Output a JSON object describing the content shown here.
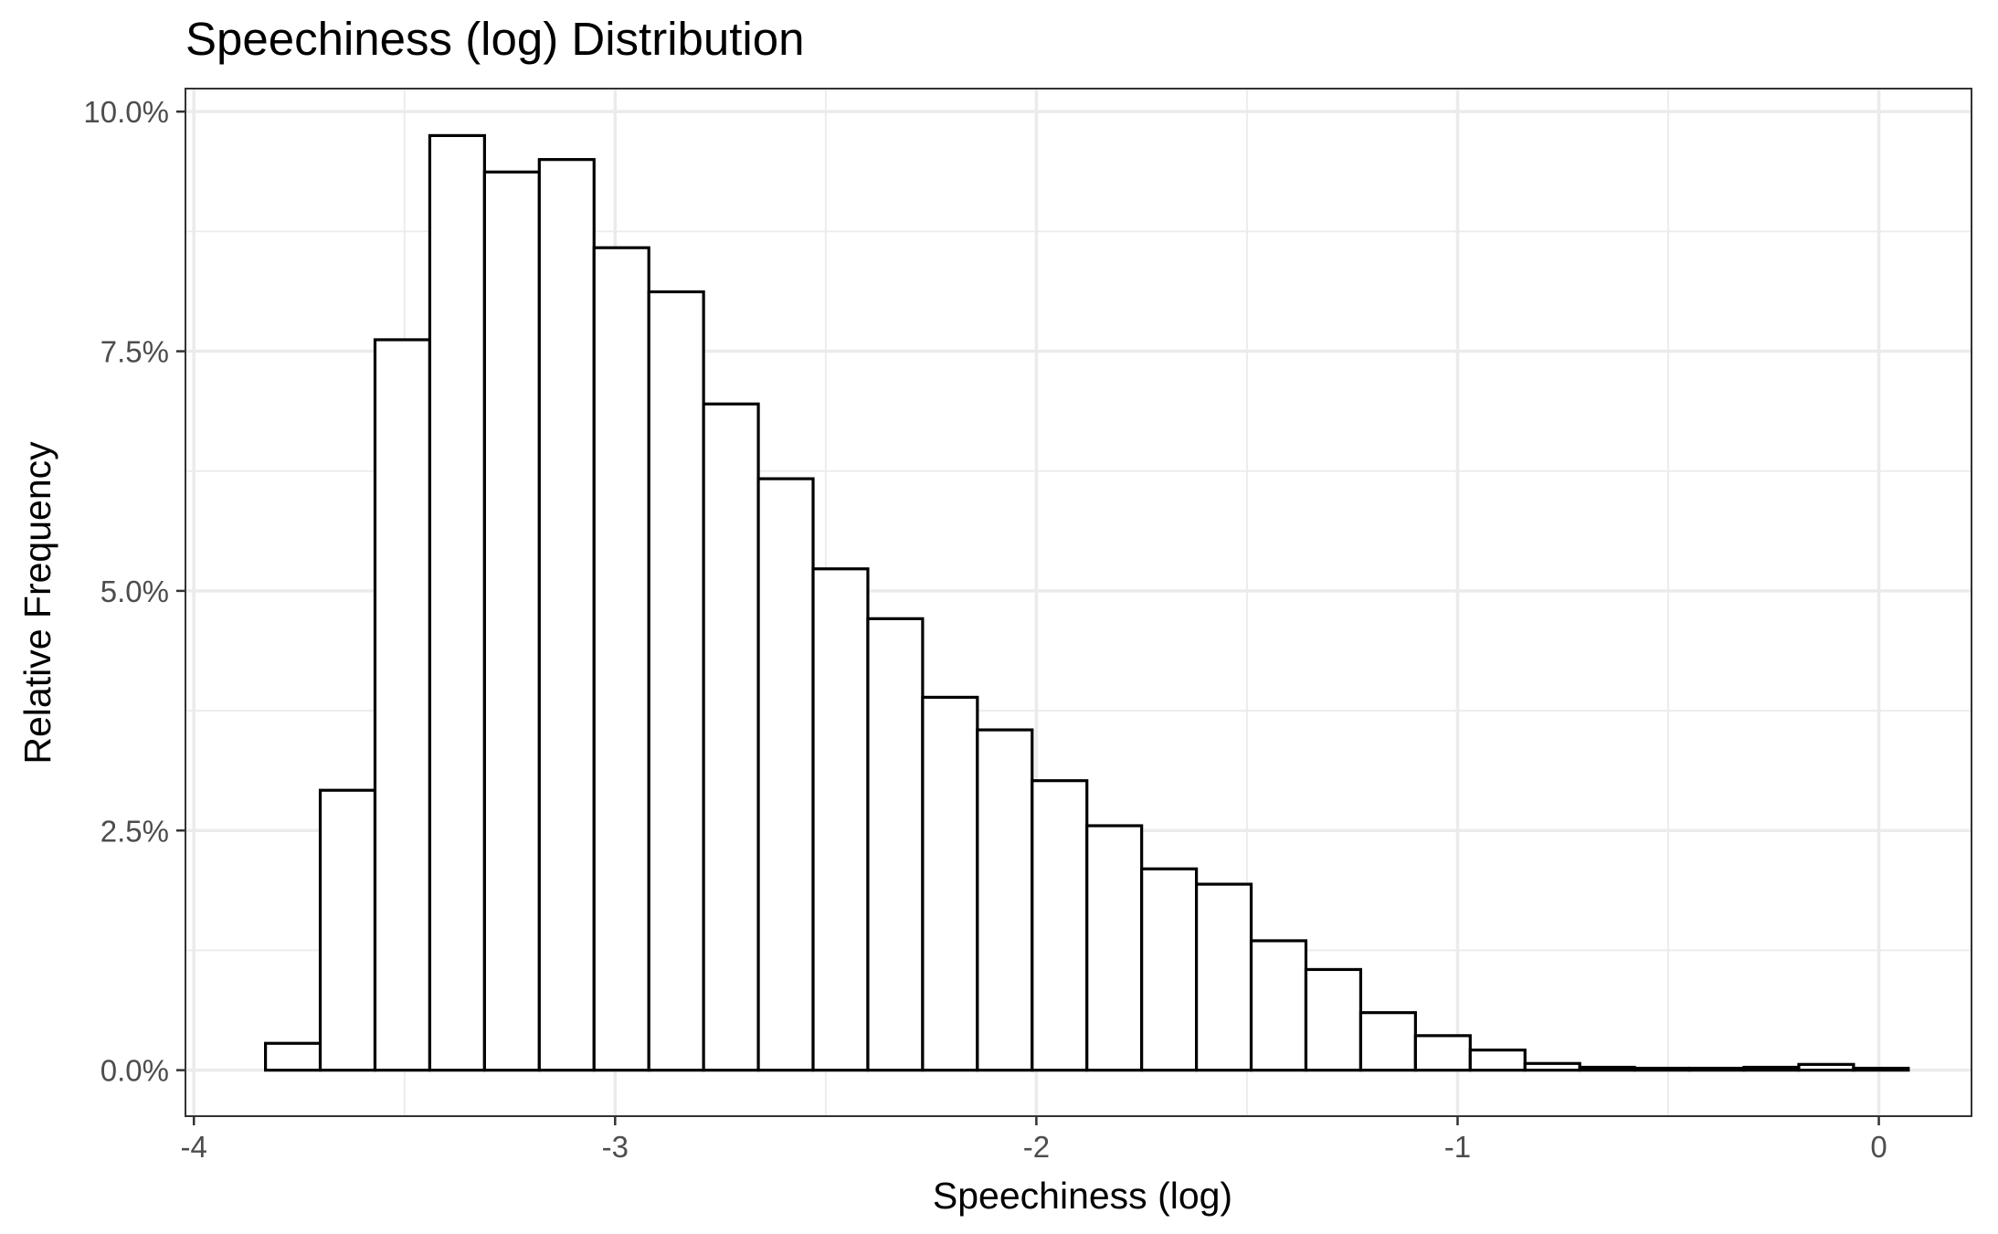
{
  "chart_data": {
    "type": "bar",
    "subtype": "histogram",
    "title": "Speechiness (log) Distribution",
    "xlabel": "Speechiness (log)",
    "ylabel": "Relative Frequency",
    "xlim": [
      -4.02,
      0.22
    ],
    "ylim": [
      -0.0048,
      0.1024
    ],
    "x_ticks": [
      -4,
      -3,
      -2,
      -1,
      0
    ],
    "x_tick_labels": [
      "-4",
      "-3",
      "-2",
      "-1",
      "0"
    ],
    "y_ticks": [
      0.0,
      0.025,
      0.05,
      0.075,
      0.1
    ],
    "y_tick_labels": [
      "0.0%",
      "2.5%",
      "5.0%",
      "7.5%",
      "10.0%"
    ],
    "grid": true,
    "bin_width": 0.13,
    "bin_start": -3.83,
    "values": [
      0.0028,
      0.0292,
      0.0762,
      0.0975,
      0.0937,
      0.095,
      0.0858,
      0.0812,
      0.0695,
      0.0617,
      0.0523,
      0.0471,
      0.0389,
      0.0355,
      0.0302,
      0.0255,
      0.021,
      0.0194,
      0.0135,
      0.0105,
      0.006,
      0.0036,
      0.0021,
      0.0007,
      0.0003,
      0.0002,
      0.0002,
      0.0003,
      0.0006,
      0.0002
    ]
  }
}
